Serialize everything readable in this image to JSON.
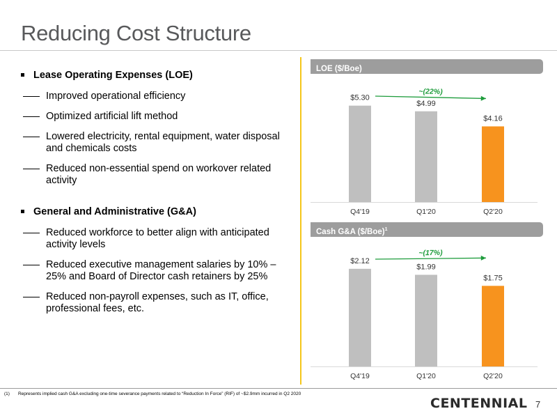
{
  "page": {
    "title": "Reducing Cost Structure",
    "page_number": "7",
    "logo": "CENTENNIAL"
  },
  "sections": [
    {
      "heading": "Lease Operating Expenses (LOE)",
      "items": [
        "Improved operational efficiency",
        "Optimized artificial lift method",
        "Lowered electricity, rental equipment, water disposal and chemicals costs",
        "Reduced non-essential spend on workover related activity"
      ]
    },
    {
      "heading": "General and Administrative (G&A)",
      "items": [
        "Reduced workforce to better align with anticipated activity levels",
        "Reduced executive management salaries by 10% – 25% and Board of Director cash retainers by 25%",
        "Reduced non-payroll expenses, such as IT, office, professional fees, etc."
      ]
    }
  ],
  "footnote": {
    "mark": "(1)",
    "text": "Represents implied cash G&A excluding one-time severance payments related to “Reduction In Force” (RIF) of ~$2.9mm incurred in Q2 2020"
  },
  "colors": {
    "bar_gray": "#bfbfbf",
    "bar_highlight": "#f7931e",
    "trend_arrow": "#1e9c3c"
  },
  "chart_data": [
    {
      "type": "bar",
      "title": "LOE ($/Boe)",
      "title_sup": "",
      "categories": [
        "Q4'19",
        "Q1'20",
        "Q2'20"
      ],
      "values": [
        5.3,
        4.99,
        4.16
      ],
      "value_labels": [
        "$5.30",
        "$4.99",
        "$4.16"
      ],
      "highlight_index": 2,
      "annotation": "~(22%)",
      "ylim": [
        0,
        5.9
      ]
    },
    {
      "type": "bar",
      "title": "Cash G&A ($/Boe)",
      "title_sup": "1",
      "categories": [
        "Q4'19",
        "Q1'20",
        "Q2'20"
      ],
      "values": [
        2.12,
        1.99,
        1.75
      ],
      "value_labels": [
        "$2.12",
        "$1.99",
        "$1.75"
      ],
      "highlight_index": 2,
      "annotation": "~(17%)",
      "ylim": [
        0,
        2.36
      ]
    }
  ]
}
